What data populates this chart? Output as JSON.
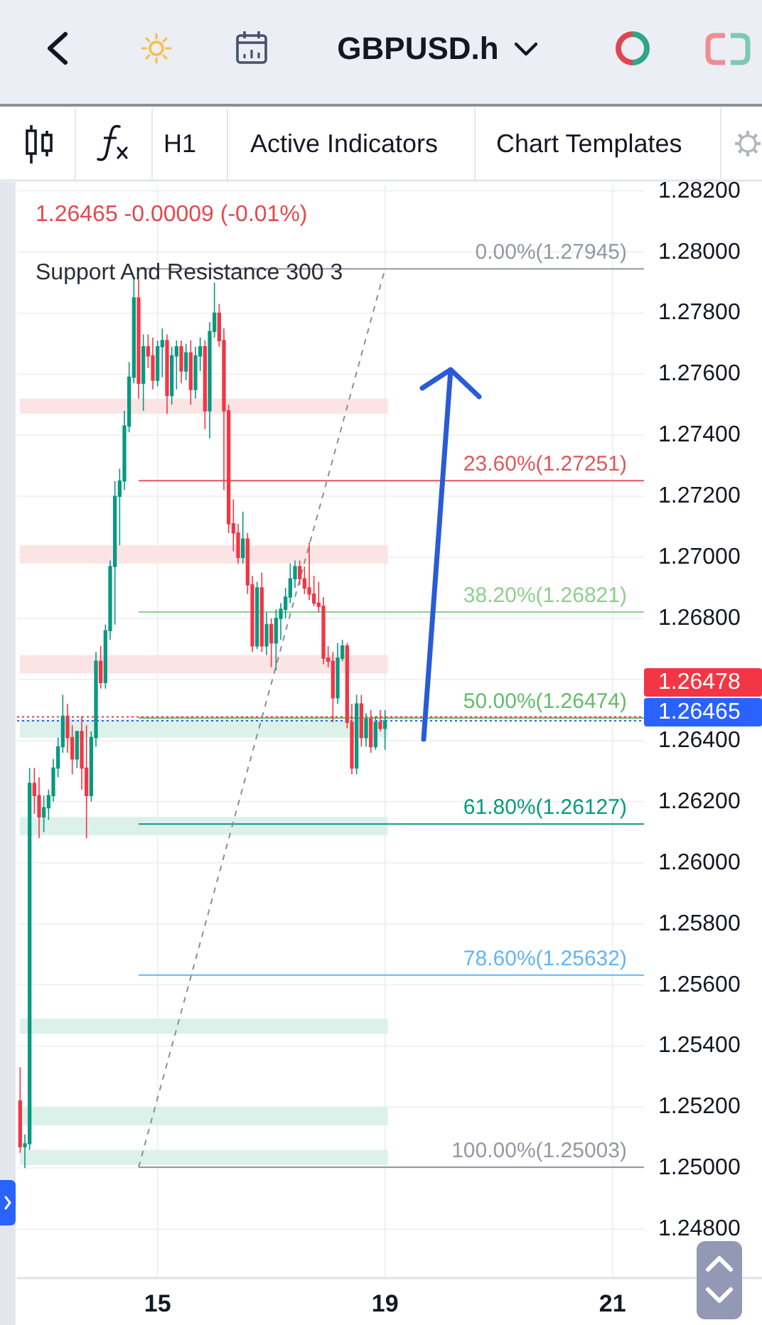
{
  "chart_data": {
    "type": "candlestick",
    "title": "GBPUSD.h",
    "annotations": [
      "1.26465 -0.00009 (-0.01%)",
      "Support And Resistance 300 3",
      "H1",
      "Active Indicators",
      "Chart Templates"
    ],
    "categories": [
      null,
      null,
      null,
      null,
      null,
      null,
      null,
      null,
      null,
      null,
      null,
      null,
      null,
      null,
      null,
      null,
      null,
      null,
      null,
      null,
      null,
      null,
      null,
      null,
      null,
      null,
      null,
      null,
      null,
      "15",
      null,
      null,
      null,
      null,
      null,
      null,
      null,
      null,
      null,
      null,
      null,
      null,
      null,
      null,
      null,
      null,
      null,
      null,
      null,
      null,
      null,
      null,
      null,
      null,
      null,
      null,
      null,
      null,
      null,
      null,
      null,
      null,
      null,
      null,
      null,
      null,
      null,
      null,
      null,
      null,
      null,
      null,
      null,
      null,
      null,
      null,
      null,
      "19",
      null,
      null,
      null,
      null,
      null,
      null,
      null,
      null,
      null,
      null,
      null,
      null,
      null,
      null,
      null,
      null,
      null,
      null,
      null,
      null,
      null,
      null,
      null,
      null,
      null,
      null,
      null,
      null,
      null,
      null,
      null,
      null,
      null,
      null,
      null,
      null,
      null,
      null,
      null,
      null,
      null,
      null,
      null,
      null,
      null,
      null,
      null,
      "21",
      null,
      null,
      null,
      null,
      null,
      null
    ],
    "ohlc": [
      [
        1.2522,
        1.2533,
        1.2505,
        1.2507
      ],
      [
        1.2507,
        1.2511,
        1.25,
        1.2508
      ],
      [
        1.2508,
        1.2631,
        1.2506,
        1.2626
      ],
      [
        1.2626,
        1.2631,
        1.2616,
        1.2622
      ],
      [
        1.2622,
        1.2628,
        1.2608,
        1.2615
      ],
      [
        1.2615,
        1.2622,
        1.261,
        1.2618
      ],
      [
        1.2618,
        1.2624,
        1.2614,
        1.2622
      ],
      [
        1.2622,
        1.2634,
        1.262,
        1.2631
      ],
      [
        1.2631,
        1.2641,
        1.2628,
        1.2638
      ],
      [
        1.2638,
        1.2655,
        1.2636,
        1.2648
      ],
      [
        1.2648,
        1.2652,
        1.2636,
        1.2641
      ],
      [
        1.2641,
        1.2645,
        1.2629,
        1.2634
      ],
      [
        1.2634,
        1.2643,
        1.2631,
        1.2643
      ],
      [
        1.2643,
        1.2648,
        1.2624,
        1.2631
      ],
      [
        1.2631,
        1.2645,
        1.2608,
        1.2622
      ],
      [
        1.2622,
        1.2643,
        1.262,
        1.2641
      ],
      [
        1.2641,
        1.2669,
        1.2638,
        1.2666
      ],
      [
        1.2666,
        1.2671,
        1.2657,
        1.2659
      ],
      [
        1.2659,
        1.2678,
        1.2657,
        1.2676
      ],
      [
        1.2676,
        1.2699,
        1.2673,
        1.2697
      ],
      [
        1.2697,
        1.2725,
        1.2678,
        1.272
      ],
      [
        1.272,
        1.2729,
        1.2704,
        1.2725
      ],
      [
        1.2725,
        1.2748,
        1.2722,
        1.2743
      ],
      [
        1.2743,
        1.2764,
        1.2741,
        1.2759
      ],
      [
        1.2759,
        1.2791,
        1.2757,
        1.2785
      ],
      [
        1.2785,
        1.2791,
        1.2752,
        1.2757
      ],
      [
        1.2757,
        1.2773,
        1.2748,
        1.2769
      ],
      [
        1.2769,
        1.2773,
        1.2762,
        1.2766
      ],
      [
        1.2766,
        1.2772,
        1.2755,
        1.2758
      ],
      [
        1.2758,
        1.2771,
        1.2756,
        1.2769
      ],
      [
        1.2769,
        1.2775,
        1.2759,
        1.2771
      ],
      [
        1.2771,
        1.2773,
        1.2747,
        1.2753
      ],
      [
        1.2753,
        1.2769,
        1.275,
        1.2766
      ],
      [
        1.2766,
        1.2771,
        1.2755,
        1.2769
      ],
      [
        1.2769,
        1.2771,
        1.2757,
        1.2761
      ],
      [
        1.2761,
        1.277,
        1.2758,
        1.2767
      ],
      [
        1.2767,
        1.2771,
        1.275,
        1.2755
      ],
      [
        1.2755,
        1.2769,
        1.2752,
        1.2766
      ],
      [
        1.2766,
        1.2772,
        1.2761,
        1.2769
      ],
      [
        1.2769,
        1.2771,
        1.2742,
        1.2748
      ],
      [
        1.2748,
        1.2777,
        1.2739,
        1.2774
      ],
      [
        1.2774,
        1.279,
        1.2772,
        1.278
      ],
      [
        1.278,
        1.2783,
        1.2769,
        1.2771
      ],
      [
        1.2771,
        1.2775,
        1.2722,
        1.2748
      ],
      [
        1.2748,
        1.275,
        1.2708,
        1.2711
      ],
      [
        1.2711,
        1.2719,
        1.2702,
        1.2708
      ],
      [
        1.2708,
        1.2711,
        1.2698,
        1.27
      ],
      [
        1.27,
        1.2715,
        1.2698,
        1.2706
      ],
      [
        1.2706,
        1.2708,
        1.2688,
        1.2691
      ],
      [
        1.2691,
        1.2694,
        1.2669,
        1.2671
      ],
      [
        1.2671,
        1.2692,
        1.267,
        1.269
      ],
      [
        1.269,
        1.2695,
        1.2669,
        1.2671
      ],
      [
        1.2671,
        1.2682,
        1.2668,
        1.2678
      ],
      [
        1.2678,
        1.268,
        1.2664,
        1.2672
      ],
      [
        1.2672,
        1.2683,
        1.2663,
        1.268
      ],
      [
        1.268,
        1.2685,
        1.2673,
        1.2683
      ],
      [
        1.2683,
        1.269,
        1.268,
        1.2687
      ],
      [
        1.2687,
        1.2698,
        1.2685,
        1.2693
      ],
      [
        1.2693,
        1.2699,
        1.269,
        1.2697
      ],
      [
        1.2697,
        1.2699,
        1.2691,
        1.2693
      ],
      [
        1.2693,
        1.2697,
        1.2688,
        1.269
      ],
      [
        1.269,
        1.2705,
        1.2686,
        1.2688
      ],
      [
        1.2688,
        1.2694,
        1.2684,
        1.2685
      ],
      [
        1.2685,
        1.2692,
        1.2682,
        1.2684
      ],
      [
        1.2684,
        1.2687,
        1.2665,
        1.2667
      ],
      [
        1.2667,
        1.2671,
        1.2664,
        1.2666
      ],
      [
        1.2666,
        1.2669,
        1.2646,
        1.2654
      ],
      [
        1.2654,
        1.2672,
        1.2652,
        1.2667
      ],
      [
        1.2667,
        1.2673,
        1.2666,
        1.2671
      ],
      [
        1.2671,
        1.2672,
        1.2644,
        1.2646
      ],
      [
        1.2646,
        1.2652,
        1.2629,
        1.2631
      ],
      [
        1.2631,
        1.2655,
        1.2629,
        1.2652
      ],
      [
        1.2652,
        1.2655,
        1.2638,
        1.2641
      ],
      [
        1.2641,
        1.2649,
        1.2638,
        1.2647
      ],
      [
        1.2647,
        1.265,
        1.2636,
        1.2638
      ],
      [
        1.2638,
        1.2648,
        1.2637,
        1.2646
      ],
      [
        1.2646,
        1.265,
        1.2643,
        1.2644
      ],
      [
        1.2644,
        1.265,
        1.2637,
        1.26465
      ],
      null,
      null,
      null,
      null,
      null,
      null,
      null,
      null,
      null,
      null,
      null,
      null,
      null,
      null,
      null,
      null,
      null,
      null,
      null,
      null,
      null,
      null,
      null,
      null,
      null,
      null,
      null,
      null,
      null,
      null,
      null,
      null,
      null,
      null,
      null,
      null,
      null,
      null,
      null,
      null,
      null,
      null,
      null,
      null,
      null,
      null,
      null,
      null,
      null,
      null,
      null,
      null,
      null,
      null
    ],
    "colors": [
      "#f23645",
      "#089981",
      "#089981",
      "#f23645",
      "#f23645",
      "#089981",
      "#089981",
      "#089981",
      "#089981",
      "#089981",
      "#f23645",
      "#f23645",
      "#089981",
      "#f23645",
      "#f23645",
      "#089981",
      "#089981",
      "#f23645",
      "#089981",
      "#089981",
      "#089981",
      "#089981",
      "#089981",
      "#089981",
      "#089981",
      "#f23645",
      "#089981",
      "#f23645",
      "#f23645",
      "#089981",
      "#089981",
      "#f23645",
      "#089981",
      "#089981",
      "#f23645",
      "#089981",
      "#f23645",
      "#089981",
      "#089981",
      "#f23645",
      "#089981",
      "#089981",
      "#f23645",
      "#f23645",
      "#f23645",
      "#f23645",
      "#f23645",
      "#089981",
      "#f23645",
      "#f23645",
      "#089981",
      "#f23645",
      "#089981",
      "#f23645",
      "#089981",
      "#089981",
      "#089981",
      "#089981",
      "#089981",
      "#f23645",
      "#f23645",
      "#f23645",
      "#f23645",
      "#f23645",
      "#f23645",
      "#f23645",
      "#f23645",
      "#089981",
      "#089981",
      "#f23645",
      "#f23645",
      "#089981",
      "#f23645",
      "#089981",
      "#f23645",
      "#089981",
      "#f23645",
      "#089981",
      null,
      null,
      null,
      null,
      null,
      null,
      null,
      null,
      null,
      null,
      null,
      null,
      null,
      null,
      null,
      null,
      null,
      null,
      null,
      null,
      null,
      null,
      null,
      null,
      null,
      null,
      null,
      null,
      null,
      null,
      null,
      null,
      null,
      null,
      null,
      null,
      null,
      null,
      null,
      null,
      null,
      null,
      null,
      null,
      null,
      null,
      null,
      null,
      null,
      null,
      null,
      null,
      null,
      null
    ],
    "series": [
      {
        "type": "line",
        "color": "#8a8e99",
        "line_style": "dashed",
        "values": [
          null,
          null,
          null,
          null,
          null,
          null,
          null,
          null,
          null,
          null,
          null,
          null,
          null,
          null,
          null,
          null,
          null,
          null,
          null,
          null,
          null,
          null,
          null,
          null,
          null,
          1.25003,
          null,
          null,
          null,
          null,
          null,
          null,
          null,
          null,
          null,
          null,
          null,
          null,
          null,
          null,
          null,
          null,
          null,
          null,
          null,
          null,
          null,
          null,
          null,
          null,
          null,
          null,
          null,
          null,
          null,
          null,
          null,
          null,
          null,
          null,
          null,
          null,
          null,
          null,
          null,
          null,
          null,
          null,
          null,
          null,
          null,
          null,
          null,
          null,
          null,
          null,
          null,
          1.27945,
          null,
          null,
          null,
          null,
          null,
          null,
          null,
          null,
          null,
          null,
          null,
          null,
          null,
          null,
          null,
          null,
          null,
          null,
          null,
          null,
          null,
          null,
          null,
          null,
          null,
          null,
          null,
          null,
          null,
          null,
          null,
          null,
          null,
          null,
          null,
          null,
          null,
          null,
          null,
          null,
          null,
          null,
          null,
          null,
          null,
          null,
          null,
          null,
          null,
          null,
          null,
          null,
          null,
          null
        ]
      }
    ],
    "ylim": [
      1.2464,
      1.2822
    ],
    "yticks": [
      {
        "value": 1.248,
        "label": "1.24800"
      },
      {
        "value": 1.25,
        "label": "1.25000"
      },
      {
        "value": 1.252,
        "label": "1.25200"
      },
      {
        "value": 1.254,
        "label": "1.25400"
      },
      {
        "value": 1.256,
        "label": "1.25600"
      },
      {
        "value": 1.258,
        "label": "1.25800"
      },
      {
        "value": 1.26,
        "label": "1.26000"
      },
      {
        "value": 1.262,
        "label": "1.26200"
      },
      {
        "value": 1.264,
        "label": "1.26400"
      },
      {
        "value": 1.266,
        "label": null
      },
      {
        "value": 1.268,
        "label": "1.26800"
      },
      {
        "value": 1.27,
        "label": "1.27000"
      },
      {
        "value": 1.272,
        "label": "1.27200"
      },
      {
        "value": 1.274,
        "label": "1.27400"
      },
      {
        "value": 1.276,
        "label": "1.27600"
      },
      {
        "value": 1.278,
        "label": "1.27800"
      },
      {
        "value": 1.28,
        "label": "1.28000"
      },
      {
        "value": 1.282,
        "label": "1.28200"
      }
    ],
    "grid": true,
    "ref_lines": [
      {
        "axis": "y",
        "value": 1.27945,
        "label": "0.00%(1.27945)",
        "color": "#9598a1",
        "line_style": "solid"
      },
      {
        "axis": "y",
        "value": 1.27251,
        "label": "23.60%(1.27251)",
        "color": "#e0575b",
        "line_style": "solid"
      },
      {
        "axis": "y",
        "value": 1.26821,
        "label": "38.20%(1.26821)",
        "color": "#8fcf8f",
        "line_style": "solid"
      },
      {
        "axis": "y",
        "value": 1.26474,
        "label": "50.00%(1.26474)",
        "color": "#66bb6a",
        "line_style": "solid"
      },
      {
        "axis": "y",
        "value": 1.26127,
        "label": "61.80%(1.26127)",
        "color": "#089981",
        "line_style": "solid"
      },
      {
        "axis": "y",
        "value": 1.25632,
        "label": "78.60%(1.25632)",
        "color": "#64b5f6",
        "line_style": "solid"
      },
      {
        "axis": "y",
        "value": 1.25003,
        "label": "100.00%(1.25003)",
        "color": "#9598a1",
        "line_style": "solid"
      },
      {
        "axis": "y",
        "value": 1.26478,
        "label": "1.26478",
        "color": "#f23645",
        "line_style": "dotted"
      },
      {
        "axis": "y",
        "value": 1.26465,
        "label": "1.26465",
        "color": "#2962ff",
        "line_style": "dotted"
      }
    ],
    "bands": [
      {
        "axis": "y",
        "from": 1.2747,
        "to": 1.2752,
        "color": "#fce4e5"
      },
      {
        "axis": "y",
        "from": 1.2698,
        "to": 1.2704,
        "color": "#fce4e5"
      },
      {
        "axis": "y",
        "from": 1.2662,
        "to": 1.2668,
        "color": "#fce4e5"
      },
      {
        "axis": "y",
        "from": 1.2641,
        "to": 1.2647,
        "color": "#ddf1eb"
      },
      {
        "axis": "y",
        "from": 1.2609,
        "to": 1.2615,
        "color": "#ddf1eb"
      },
      {
        "axis": "y",
        "from": 1.2544,
        "to": 1.2549,
        "color": "#ddf1eb"
      },
      {
        "axis": "y",
        "from": 1.2514,
        "to": 1.252,
        "color": "#ddf1eb"
      },
      {
        "axis": "y",
        "from": 1.2501,
        "to": 1.2506,
        "color": "#ddf1eb"
      }
    ]
  }
}
